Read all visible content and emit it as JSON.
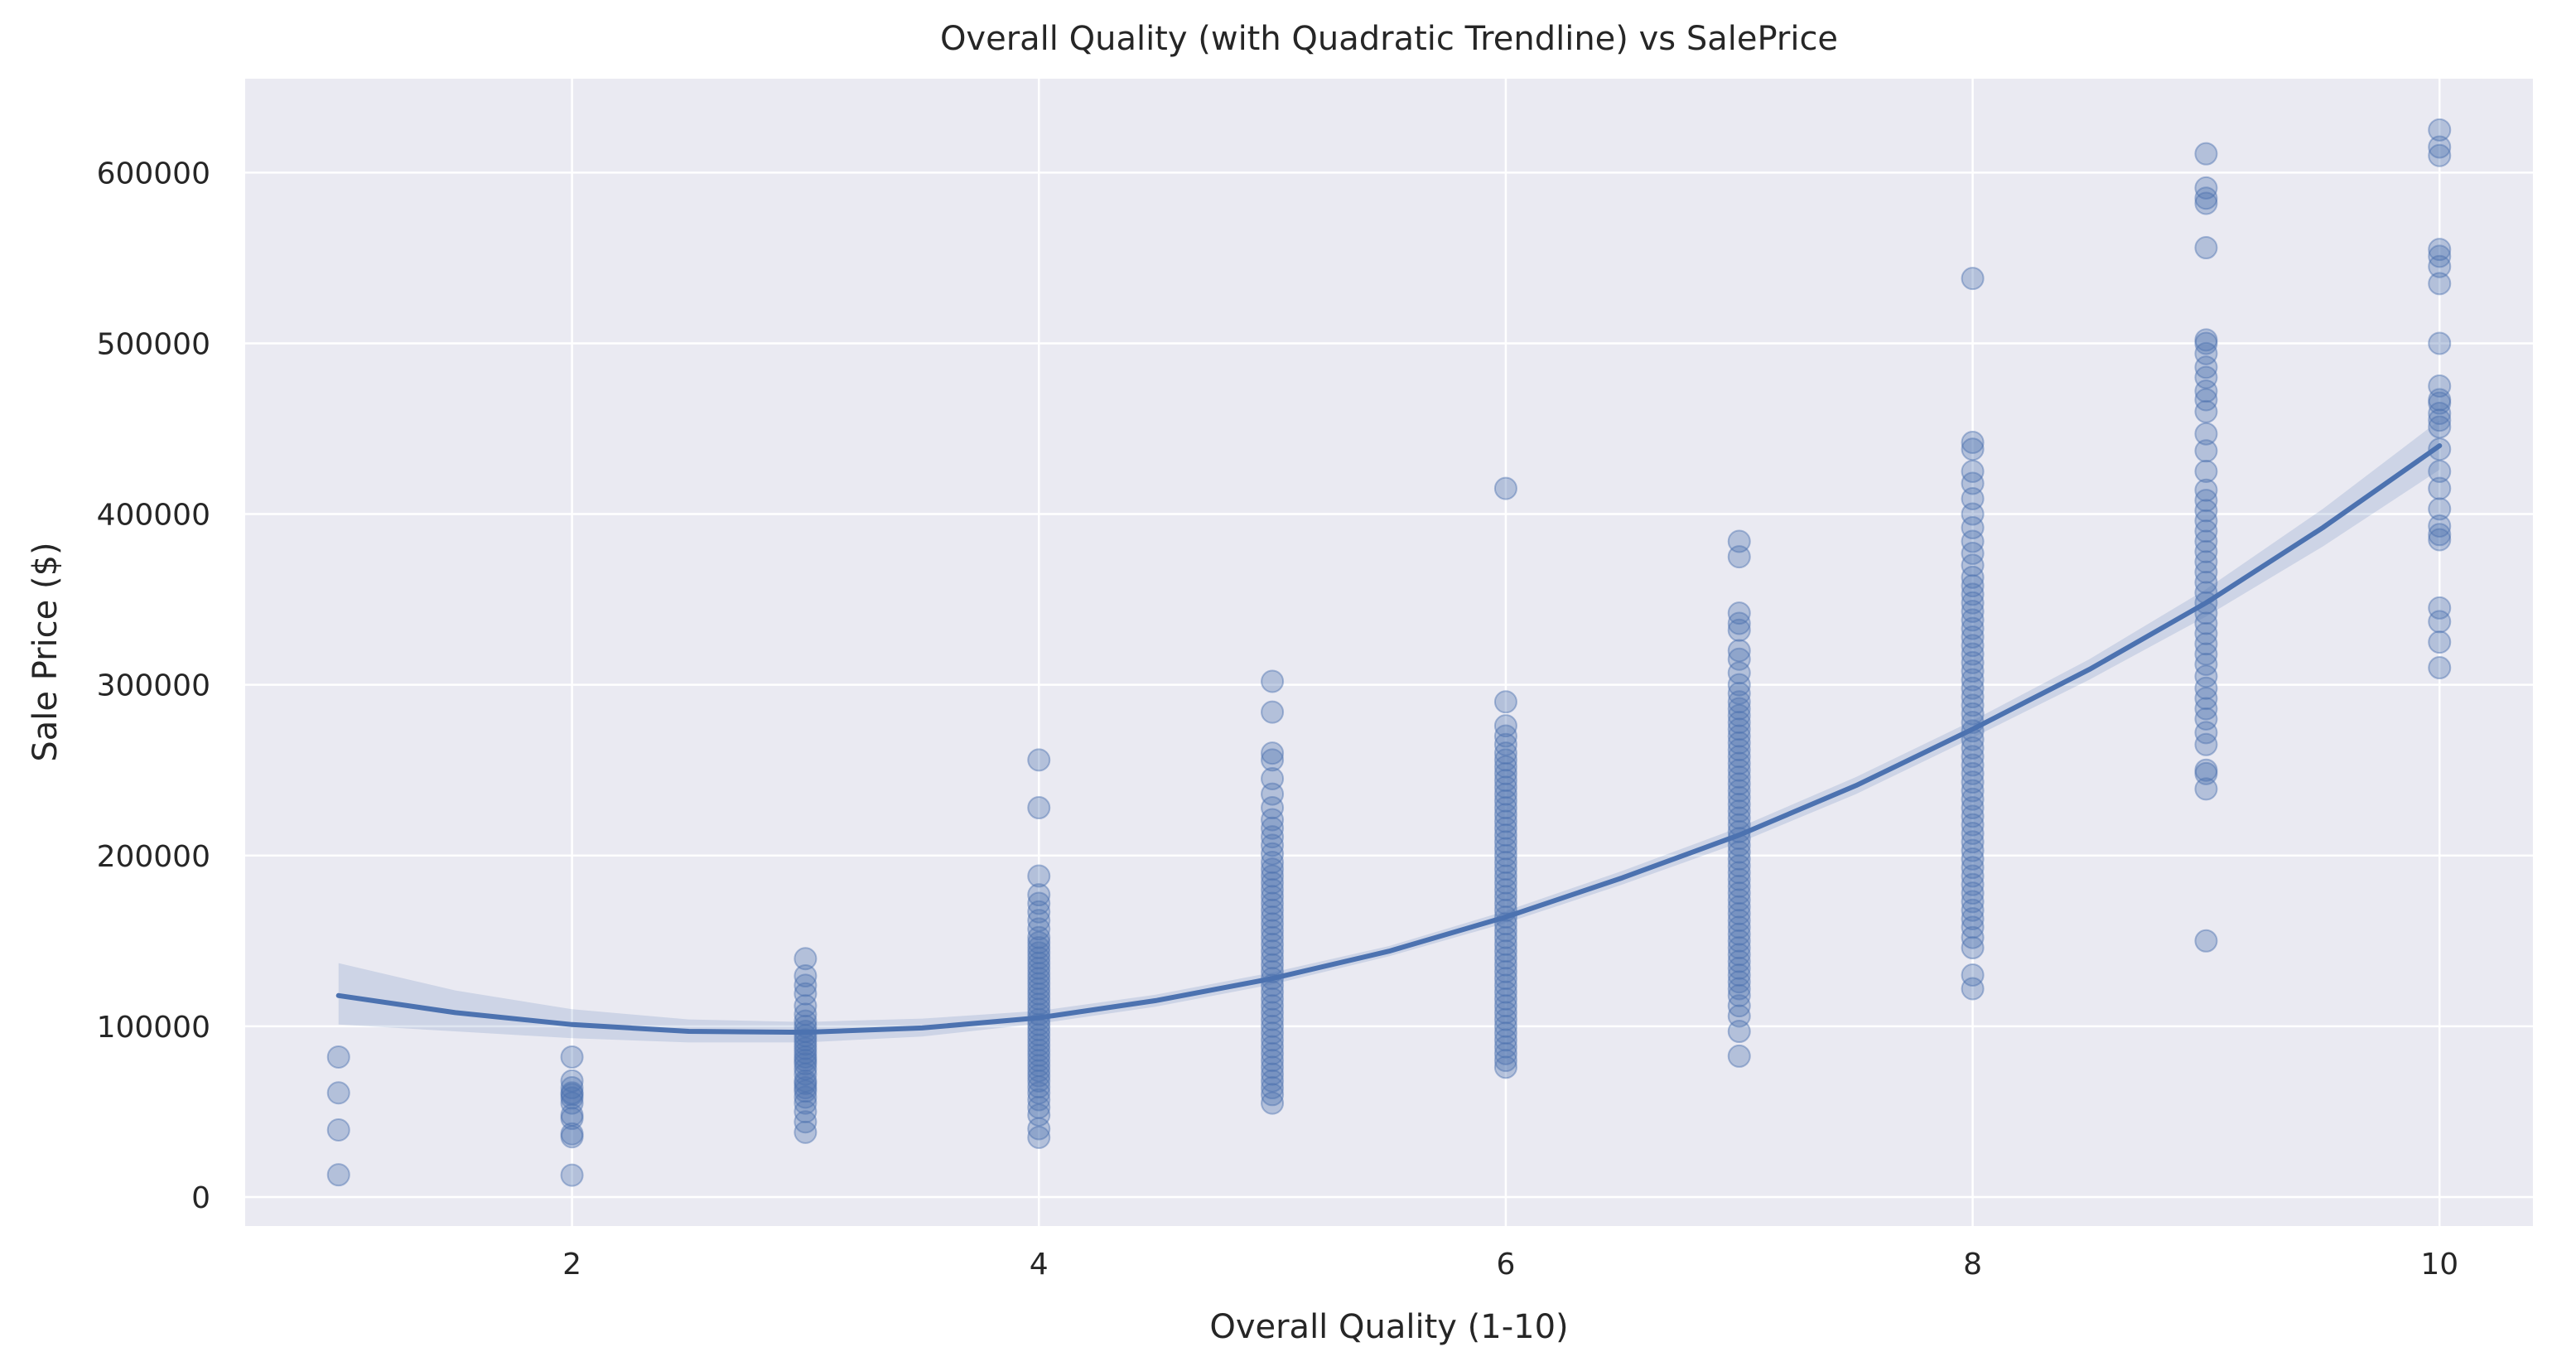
{
  "chart_data": {
    "type": "scatter",
    "title": "Overall Quality (with Quadratic Trendline) vs SalePrice",
    "xlabel": "Overall Quality (1-10)",
    "ylabel": "Sale Price ($)",
    "xlim": [
      0.6,
      10.4
    ],
    "ylim": [
      -17000,
      655000
    ],
    "xticks": [
      2,
      4,
      6,
      8,
      10
    ],
    "yticks": [
      0,
      100000,
      200000,
      300000,
      400000,
      500000,
      600000
    ],
    "grid": true,
    "background": "#eaeaf2",
    "grid_color": "#ffffff",
    "point_color": "#4c72b0",
    "line_color": "#4c72b0",
    "series": [
      {
        "type": "scatter",
        "points_by_x": [
          {
            "x": 1,
            "y": [
              13000,
              39300,
              61000,
              82000
            ]
          },
          {
            "x": 2,
            "y": [
              12800,
              35300,
              37000,
              46000,
              48000,
              55000,
              58000,
              60000,
              61000,
              64000,
              68000,
              82000
            ]
          },
          {
            "x": 3,
            "y": [
              37900,
              44000,
              50000,
              55000,
              58500,
              62000,
              64000,
              66500,
              68000,
              72000,
              75000,
              78000,
              80000,
              82000,
              84500,
              87000,
              89500,
              92000,
              94500,
              97000,
              100000,
              103000,
              107000,
              112000,
              119000,
              124000,
              129500,
              139600
            ]
          },
          {
            "x": 4,
            "y": [
              34900,
              40000,
              48000,
              52500,
              57000,
              61000,
              64500,
              68000,
              71000,
              74000,
              77000,
              80000,
              83000,
              86000,
              89000,
              92000,
              95000,
              98000,
              101000,
              104000,
              107000,
              110000,
              113000,
              116000,
              119000,
              122000,
              125000,
              128000,
              131000,
              134000,
              137000,
              140000,
              143000,
              146000,
              149000,
              152000,
              157000,
              162000,
              167000,
              172000,
              177000,
              188000,
              228000,
              256000
            ]
          },
          {
            "x": 5,
            "y": [
              55000,
              60000,
              64000,
              68000,
              72000,
              76000,
              80000,
              84000,
              88000,
              92000,
              96000,
              100000,
              104000,
              108000,
              112000,
              116000,
              120000,
              124000,
              128000,
              132000,
              136000,
              140000,
              144000,
              148000,
              152000,
              156000,
              160000,
              164000,
              168000,
              172000,
              176000,
              180000,
              184000,
              188000,
              192000,
              196000,
              201000,
              206000,
              211000,
              216000,
              221000,
              228000,
              236000,
              245000,
              256000,
              260000,
              284000,
              302000
            ]
          },
          {
            "x": 6,
            "y": [
              76000,
              80000,
              84000,
              88000,
              92000,
              96000,
              100000,
              104000,
              108000,
              112000,
              116000,
              120000,
              124000,
              128000,
              132000,
              136000,
              140000,
              144000,
              148000,
              152000,
              156000,
              160000,
              164000,
              168000,
              172000,
              176000,
              180000,
              184000,
              188000,
              192000,
              196000,
              200000,
              204000,
              208000,
              212000,
              216000,
              220000,
              224000,
              228000,
              232000,
              236000,
              240000,
              244000,
              248000,
              252000,
              256000,
              260000,
              265000,
              270000,
              276000,
              290000,
              415000
            ]
          },
          {
            "x": 7,
            "y": [
              82500,
              97000,
              106000,
              112000,
              118000,
              122000,
              126000,
              130000,
              134000,
              138000,
              142000,
              146000,
              150000,
              154000,
              158000,
              162000,
              166000,
              170000,
              174000,
              178000,
              182000,
              186000,
              190000,
              194000,
              198000,
              202000,
              206000,
              210000,
              214000,
              218000,
              222000,
              226000,
              230000,
              234000,
              238000,
              242000,
              246000,
              250000,
              254000,
              258000,
              262000,
              266000,
              270000,
              274000,
              278000,
              282000,
              286000,
              290000,
              295000,
              300000,
              307000,
              315000,
              320000,
              332000,
              336000,
              342000,
              375000,
              384000
            ]
          },
          {
            "x": 8,
            "y": [
              122000,
              130000,
              146000,
              152000,
              158000,
              163000,
              168000,
              173000,
              178000,
              183000,
              188000,
              193000,
              198000,
              203000,
              208000,
              213000,
              218000,
              223000,
              228000,
              233000,
              238000,
              243000,
              248000,
              253000,
              258000,
              263000,
              268000,
              273000,
              278000,
              283000,
              288000,
              293000,
              298000,
              303000,
              308000,
              313000,
              318000,
              323000,
              328000,
              333000,
              338000,
              343000,
              348000,
              353000,
              358000,
              363000,
              370000,
              377000,
              384000,
              392000,
              400000,
              409000,
              418000,
              425000,
              438000,
              442000,
              538000
            ]
          },
          {
            "x": 9,
            "y": [
              150000,
              239000,
              248000,
              250000,
              265000,
              272000,
              280000,
              286000,
              292000,
              298000,
              305000,
              312000,
              318000,
              324000,
              330000,
              336000,
              342000,
              348000,
              354000,
              360000,
              366000,
              372000,
              378000,
              384000,
              390000,
              396000,
              402000,
              408000,
              414000,
              425000,
              437000,
              447000,
              460000,
              467000,
              472000,
              480000,
              486000,
              494000,
              500000,
              502000,
              556000,
              582000,
              585000,
              591000,
              611000
            ]
          },
          {
            "x": 10,
            "y": [
              310000,
              325000,
              337000,
              345000,
              385000,
              388000,
              393000,
              403000,
              415000,
              425000,
              438000,
              451000,
              455000,
              459000,
              465000,
              467000,
              475000,
              500000,
              535000,
              545000,
              551000,
              555000,
              610000,
              615000,
              625000
            ]
          }
        ]
      },
      {
        "type": "line",
        "fit": "quadratic",
        "x": [
          1.0,
          1.5,
          2.0,
          2.5,
          3.0,
          3.5,
          4.0,
          4.5,
          5.0,
          5.5,
          6.0,
          6.5,
          7.0,
          7.5,
          8.0,
          8.5,
          9.0,
          9.5,
          10.0
        ],
        "y": [
          118000,
          108000,
          101000,
          97000,
          96500,
          99000,
          105000,
          115000,
          128000,
          144000,
          164000,
          187000,
          212000,
          241000,
          274000,
          309000,
          348000,
          392000,
          440000
        ],
        "ci_lower": [
          101000,
          97000,
          93000,
          90500,
          90500,
          94000,
          101500,
          111500,
          124500,
          141000,
          160500,
          183000,
          207500,
          236000,
          269000,
          303000,
          340000,
          381000,
          426000
        ],
        "ci_upper": [
          137000,
          121000,
          110000,
          104000,
          102500,
          104500,
          109000,
          118500,
          131500,
          147000,
          167500,
          191000,
          216500,
          246000,
          279000,
          315000,
          356000,
          403000,
          455000
        ]
      }
    ]
  }
}
